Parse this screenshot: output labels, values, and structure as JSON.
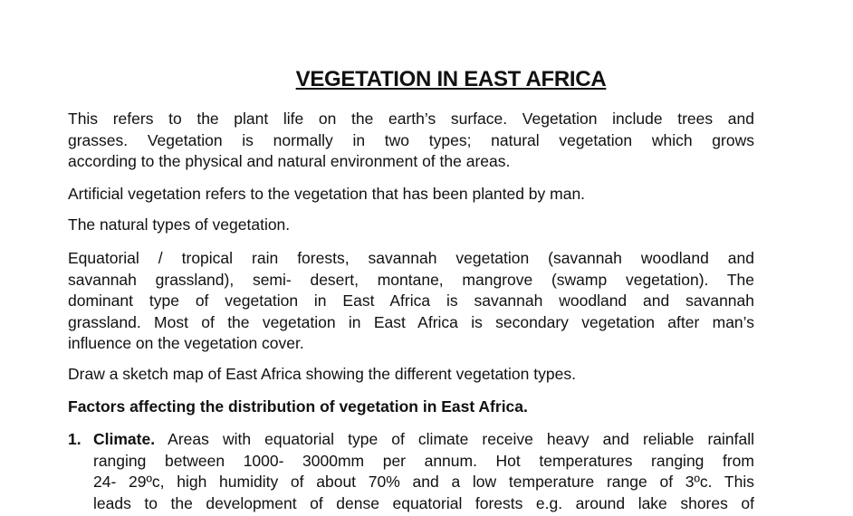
{
  "title": "VEGETATION IN EAST AFRICA",
  "paragraphs": [
    {
      "lines": [
        "This refers to the plant life on the earth’s surface. Vegetation include trees and",
        "grasses. Vegetation is normally in two types; natural vegetation which grows",
        "according to the physical and natural environment of the areas."
      ]
    },
    {
      "lines": [
        "Artificial vegetation refers to the vegetation that has been planted by man."
      ]
    },
    {
      "lines": [
        "The natural types of vegetation."
      ]
    },
    {
      "lines": [
        "Equatorial / tropical rain forests, savannah vegetation (savannah woodland and",
        "savannah grassland), semi- desert, montane, mangrove (swamp vegetation). The",
        "dominant type of vegetation in East Africa is savannah woodland and savannah",
        "grassland. Most of the vegetation in East Africa is secondary vegetation after man’s",
        "influence on the vegetation cover."
      ]
    },
    {
      "lines": [
        "Draw a sketch map of East Africa showing the different vegetation types."
      ]
    }
  ],
  "heading": "Factors affecting the distribution of vegetation in East Africa.",
  "list": [
    {
      "number": "1.",
      "label": "Climate.",
      "first_line": " Areas with equatorial type of climate receive heavy and reliable rainfall",
      "lines": [
        "ranging between 1000- 3000mm per annum. Hot temperatures ranging from",
        "24- 29ºc, high humidity of about 70% and a low temperature range of 3ºc. This",
        "leads to the development of dense equatorial forests e.g. around lake shores of"
      ]
    }
  ]
}
